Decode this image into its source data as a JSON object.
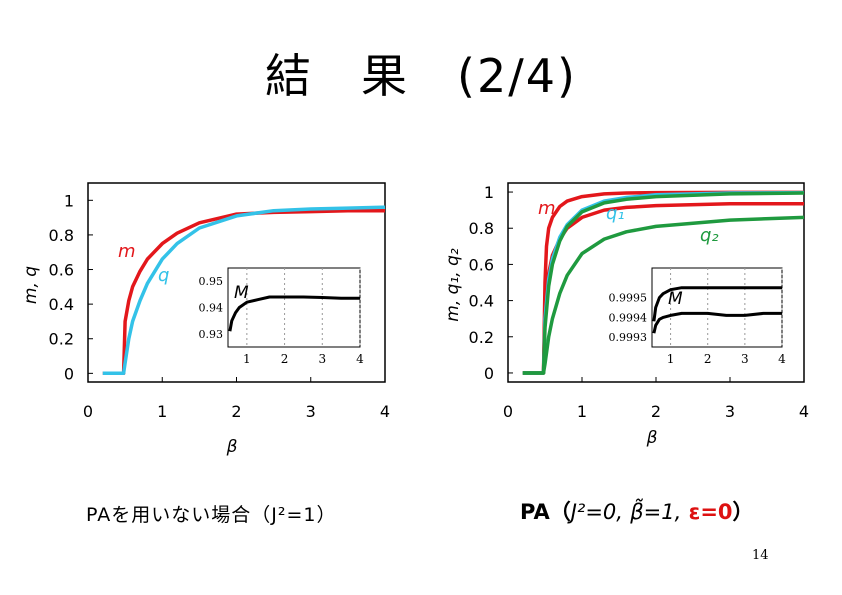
{
  "slide": {
    "title": "結　果　(2/4)",
    "caption_left": "PAを用いない場合（J²=1）",
    "caption_right_prefix": "PA（",
    "caption_right_j": "J²=0,",
    "caption_right_beta": "β̃=1,",
    "caption_right_eps": "ε=0",
    "caption_right_suffix": "）",
    "page_number": "14"
  },
  "colors": {
    "m": "#e3171b",
    "q": "#33c2e8",
    "green": "#1f9a3f",
    "text": "#000000"
  },
  "chart_data": [
    {
      "type": "line",
      "panel": "left",
      "xlabel": "β",
      "ylabel": "m, q",
      "xlim": [
        0,
        4
      ],
      "ylim": [
        -0.05,
        1.1
      ],
      "xticks": [
        "0",
        "1",
        "2",
        "3",
        "4"
      ],
      "yticks": [
        "0",
        "0.2",
        "0.4",
        "0.6",
        "0.8",
        "1"
      ],
      "series": [
        {
          "name": "m",
          "color": "#e3171b",
          "x": [
            0.2,
            0.48,
            0.5,
            0.55,
            0.6,
            0.7,
            0.8,
            1.0,
            1.2,
            1.5,
            2.0,
            2.5,
            3.0,
            3.5,
            4.0
          ],
          "y": [
            0,
            0,
            0.3,
            0.42,
            0.5,
            0.59,
            0.66,
            0.75,
            0.81,
            0.87,
            0.92,
            0.93,
            0.935,
            0.94,
            0.94
          ]
        },
        {
          "name": "q",
          "color": "#33c2e8",
          "x": [
            0.2,
            0.48,
            0.5,
            0.55,
            0.6,
            0.7,
            0.8,
            1.0,
            1.2,
            1.5,
            2.0,
            2.5,
            3.0,
            3.5,
            4.0
          ],
          "y": [
            0,
            0,
            0.06,
            0.2,
            0.3,
            0.42,
            0.52,
            0.66,
            0.75,
            0.84,
            0.91,
            0.94,
            0.95,
            0.955,
            0.96
          ]
        }
      ],
      "curve_labels": [
        "m",
        "q"
      ],
      "inset": {
        "xlim": [
          0.5,
          4
        ],
        "ylim": [
          0.925,
          0.955
        ],
        "xticks": [
          "1",
          "2",
          "3",
          "4"
        ],
        "yticks": [
          "0.93",
          "0.94",
          "0.95"
        ],
        "label": "M",
        "series": [
          {
            "name": "M",
            "color": "#000000",
            "x": [
              0.55,
              0.6,
              0.7,
              0.8,
              1.0,
              1.3,
              1.6,
              2.0,
              2.5,
              3.0,
              3.5,
              4.0
            ],
            "y": [
              0.931,
              0.935,
              0.938,
              0.94,
              0.942,
              0.943,
              0.944,
              0.944,
              0.944,
              0.9438,
              0.9435,
              0.9435
            ]
          }
        ]
      }
    },
    {
      "type": "line",
      "panel": "right",
      "xlabel": "β",
      "ylabel": "m, q₁, q₂",
      "xlim": [
        0,
        4
      ],
      "ylim": [
        -0.05,
        1.05
      ],
      "xticks": [
        "0",
        "1",
        "2",
        "3",
        "4"
      ],
      "yticks": [
        "0",
        "0.2",
        "0.4",
        "0.6",
        "0.8",
        "1"
      ],
      "series": [
        {
          "name": "m",
          "color": "#e3171b",
          "x": [
            0.2,
            0.48,
            0.5,
            0.52,
            0.55,
            0.6,
            0.7,
            0.8,
            1.0,
            1.3,
            1.6,
            2.0,
            3.0,
            4.0
          ],
          "y": [
            0,
            0,
            0.5,
            0.7,
            0.8,
            0.86,
            0.92,
            0.95,
            0.975,
            0.99,
            0.995,
            0.997,
            0.998,
            0.998
          ]
        },
        {
          "name": "m",
          "color": "#e3171b",
          "x": [
            0.2,
            0.48,
            0.5,
            0.55,
            0.6,
            0.7,
            0.8,
            1.0,
            1.3,
            1.6,
            2.0,
            3.0,
            4.0
          ],
          "y": [
            0,
            0,
            0.35,
            0.55,
            0.65,
            0.74,
            0.8,
            0.86,
            0.9,
            0.915,
            0.925,
            0.935,
            0.935
          ]
        },
        {
          "name": "q₁",
          "color": "#33c2e8",
          "x": [
            0.2,
            0.48,
            0.5,
            0.55,
            0.6,
            0.7,
            0.8,
            1.0,
            1.3,
            1.6,
            2.0,
            3.0,
            4.0
          ],
          "y": [
            0,
            0,
            0.3,
            0.52,
            0.63,
            0.75,
            0.82,
            0.9,
            0.95,
            0.97,
            0.985,
            0.995,
            0.997
          ]
        },
        {
          "name": "q₂",
          "color": "#1f9a3f",
          "x": [
            0.2,
            0.48,
            0.5,
            0.55,
            0.6,
            0.7,
            0.8,
            1.0,
            1.3,
            1.6,
            2.0,
            3.0,
            4.0
          ],
          "y": [
            0,
            0,
            0.25,
            0.48,
            0.6,
            0.73,
            0.81,
            0.89,
            0.94,
            0.96,
            0.975,
            0.99,
            0.995
          ]
        },
        {
          "name": "q₂",
          "color": "#1f9a3f",
          "x": [
            0.2,
            0.48,
            0.5,
            0.55,
            0.6,
            0.7,
            0.8,
            1.0,
            1.3,
            1.6,
            2.0,
            3.0,
            4.0
          ],
          "y": [
            0,
            0,
            0.05,
            0.2,
            0.3,
            0.44,
            0.54,
            0.66,
            0.74,
            0.78,
            0.81,
            0.845,
            0.86
          ]
        }
      ],
      "curve_labels": [
        "m",
        "q₁",
        "q₂"
      ],
      "inset": {
        "xlim": [
          0.5,
          4
        ],
        "ylim": [
          0.99925,
          0.99965
        ],
        "xticks": [
          "1",
          "2",
          "3",
          "4"
        ],
        "yticks": [
          "0.9993",
          "0.9994",
          "0.9995"
        ],
        "label": "M",
        "series": [
          {
            "name": "M",
            "color": "#000000",
            "x": [
              0.55,
              0.6,
              0.7,
              0.8,
              1.0,
              1.3,
              1.6,
              2.0,
              2.5,
              3.0,
              3.5,
              4.0
            ],
            "y": [
              0.99938,
              0.99945,
              0.9995,
              0.99952,
              0.99954,
              0.99955,
              0.99955,
              0.99955,
              0.99955,
              0.99955,
              0.99955,
              0.99955
            ]
          },
          {
            "name": "M",
            "color": "#000000",
            "x": [
              0.55,
              0.6,
              0.7,
              0.8,
              1.0,
              1.3,
              1.6,
              2.0,
              2.5,
              3.0,
              3.5,
              4.0
            ],
            "y": [
              0.99932,
              0.99936,
              0.99939,
              0.9994,
              0.99941,
              0.99942,
              0.99942,
              0.99942,
              0.99941,
              0.99941,
              0.99942,
              0.99942
            ]
          }
        ]
      }
    }
  ]
}
